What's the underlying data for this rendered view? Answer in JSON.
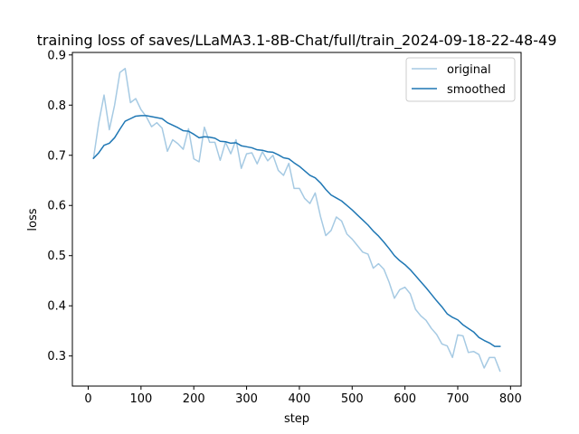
{
  "chart_data": {
    "type": "line",
    "title": "training loss of saves/LLaMA3.1-8B-Chat/full/train_2024-09-18-22-48-49",
    "xlabel": "step",
    "ylabel": "loss",
    "xlim": [
      -30,
      820
    ],
    "ylim": [
      0.24,
      0.905
    ],
    "xticks": [
      0,
      100,
      200,
      300,
      400,
      500,
      600,
      700,
      800
    ],
    "yticks": [
      0.3,
      0.4,
      0.5,
      0.6,
      0.7,
      0.8,
      0.9
    ],
    "legend_position": "top-right",
    "grid": false,
    "series": [
      {
        "name": "original",
        "color": "#a6cae3",
        "x": [
          10,
          20,
          30,
          40,
          50,
          60,
          70,
          80,
          90,
          100,
          110,
          120,
          130,
          140,
          150,
          160,
          170,
          180,
          190,
          200,
          210,
          220,
          230,
          240,
          250,
          260,
          270,
          280,
          290,
          300,
          310,
          320,
          330,
          340,
          350,
          360,
          370,
          380,
          390,
          400,
          410,
          420,
          430,
          440,
          450,
          460,
          470,
          480,
          490,
          500,
          510,
          520,
          530,
          540,
          550,
          560,
          570,
          580,
          590,
          600,
          610,
          620,
          630,
          640,
          650,
          660,
          670,
          680,
          690,
          700,
          710,
          720,
          730,
          740,
          750,
          760,
          770,
          780
        ],
        "values": [
          0.694,
          0.765,
          0.82,
          0.751,
          0.8,
          0.865,
          0.873,
          0.805,
          0.813,
          0.791,
          0.777,
          0.757,
          0.765,
          0.754,
          0.708,
          0.731,
          0.723,
          0.712,
          0.753,
          0.693,
          0.687,
          0.756,
          0.726,
          0.726,
          0.69,
          0.726,
          0.703,
          0.731,
          0.674,
          0.703,
          0.705,
          0.683,
          0.707,
          0.689,
          0.7,
          0.67,
          0.66,
          0.684,
          0.634,
          0.634,
          0.614,
          0.604,
          0.625,
          0.578,
          0.54,
          0.55,
          0.577,
          0.569,
          0.543,
          0.533,
          0.52,
          0.507,
          0.503,
          0.475,
          0.484,
          0.473,
          0.447,
          0.415,
          0.432,
          0.437,
          0.424,
          0.393,
          0.38,
          0.371,
          0.355,
          0.343,
          0.324,
          0.32,
          0.297,
          0.342,
          0.34,
          0.307,
          0.309,
          0.303,
          0.276,
          0.297,
          0.297,
          0.27
        ]
      },
      {
        "name": "smoothed",
        "color": "#1f77b4",
        "x": [
          10,
          20,
          30,
          40,
          50,
          60,
          70,
          80,
          90,
          100,
          110,
          120,
          130,
          140,
          150,
          160,
          170,
          180,
          190,
          200,
          210,
          220,
          230,
          240,
          250,
          260,
          270,
          280,
          290,
          300,
          310,
          320,
          330,
          340,
          350,
          360,
          370,
          380,
          390,
          400,
          410,
          420,
          430,
          440,
          450,
          460,
          470,
          480,
          490,
          500,
          510,
          520,
          530,
          540,
          550,
          560,
          570,
          580,
          590,
          600,
          610,
          620,
          630,
          640,
          650,
          660,
          670,
          680,
          690,
          700,
          710,
          720,
          730,
          740,
          750,
          760,
          770,
          780
        ],
        "values": [
          0.694,
          0.705,
          0.72,
          0.724,
          0.735,
          0.752,
          0.768,
          0.773,
          0.778,
          0.779,
          0.779,
          0.777,
          0.775,
          0.773,
          0.765,
          0.76,
          0.755,
          0.749,
          0.748,
          0.742,
          0.735,
          0.737,
          0.736,
          0.734,
          0.728,
          0.727,
          0.724,
          0.725,
          0.719,
          0.717,
          0.715,
          0.711,
          0.71,
          0.707,
          0.706,
          0.701,
          0.695,
          0.693,
          0.685,
          0.678,
          0.669,
          0.66,
          0.655,
          0.645,
          0.632,
          0.621,
          0.615,
          0.609,
          0.6,
          0.591,
          0.581,
          0.571,
          0.561,
          0.549,
          0.539,
          0.527,
          0.514,
          0.5,
          0.49,
          0.482,
          0.472,
          0.46,
          0.448,
          0.436,
          0.423,
          0.41,
          0.398,
          0.384,
          0.377,
          0.372,
          0.362,
          0.355,
          0.348,
          0.337,
          0.331,
          0.326,
          0.319,
          0.319
        ]
      }
    ]
  }
}
